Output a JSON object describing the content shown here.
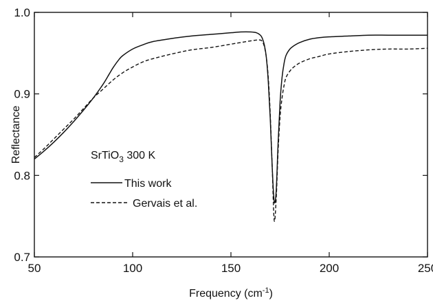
{
  "chart_data": {
    "type": "line",
    "xlabel": "Frequency (cm",
    "xlabel_sup": "-1",
    "xlabel_end": ")",
    "ylabel": "Reflectance",
    "xlim": [
      50,
      250
    ],
    "ylim": [
      0.7,
      1.0
    ],
    "xticks": [
      50,
      100,
      150,
      200,
      250
    ],
    "xtick_labels": [
      "50",
      "100",
      "150",
      "200",
      "250"
    ],
    "yticks": [
      0.7,
      0.8,
      0.9,
      1.0
    ],
    "ytick_labels": [
      "0.7",
      "0.8",
      "0.9",
      "1.0"
    ],
    "annotation": {
      "prefix": "SrTiO",
      "sub": "3",
      "suffix": " 300 K"
    },
    "grid": false,
    "legend_position": "left",
    "series": [
      {
        "name": "This work",
        "style": "solid",
        "x": [
          50,
          55,
          60,
          65,
          70,
          75,
          80,
          85,
          88,
          90,
          93,
          95,
          100,
          105,
          110,
          120,
          130,
          140,
          150,
          155,
          160,
          163,
          165,
          166,
          167,
          168,
          169,
          170,
          171,
          172,
          173,
          174,
          175,
          176,
          177,
          178,
          180,
          182,
          185,
          190,
          195,
          200,
          210,
          220,
          230,
          240,
          250
        ],
        "y": [
          0.82,
          0.83,
          0.841,
          0.853,
          0.866,
          0.88,
          0.895,
          0.912,
          0.924,
          0.932,
          0.942,
          0.947,
          0.955,
          0.96,
          0.964,
          0.968,
          0.971,
          0.973,
          0.975,
          0.976,
          0.976,
          0.975,
          0.972,
          0.968,
          0.96,
          0.945,
          0.915,
          0.87,
          0.81,
          0.768,
          0.78,
          0.84,
          0.89,
          0.92,
          0.937,
          0.947,
          0.955,
          0.959,
          0.963,
          0.967,
          0.969,
          0.97,
          0.971,
          0.972,
          0.972,
          0.972,
          0.972
        ]
      },
      {
        "name": "Gervais et al.",
        "style": "dashed",
        "x": [
          50,
          55,
          60,
          65,
          70,
          75,
          80,
          85,
          90,
          95,
          100,
          105,
          110,
          120,
          130,
          140,
          150,
          155,
          160,
          163,
          165,
          166,
          167,
          168,
          169,
          170,
          171,
          172,
          173,
          174,
          175,
          176,
          177,
          178,
          180,
          182,
          185,
          190,
          195,
          200,
          210,
          220,
          230,
          240,
          250
        ],
        "y": [
          0.822,
          0.833,
          0.845,
          0.857,
          0.869,
          0.882,
          0.895,
          0.906,
          0.917,
          0.926,
          0.933,
          0.939,
          0.943,
          0.949,
          0.954,
          0.957,
          0.961,
          0.963,
          0.965,
          0.966,
          0.966,
          0.964,
          0.958,
          0.945,
          0.92,
          0.875,
          0.81,
          0.745,
          0.77,
          0.83,
          0.872,
          0.895,
          0.91,
          0.92,
          0.928,
          0.933,
          0.938,
          0.943,
          0.946,
          0.949,
          0.952,
          0.954,
          0.955,
          0.955,
          0.956
        ]
      }
    ]
  }
}
